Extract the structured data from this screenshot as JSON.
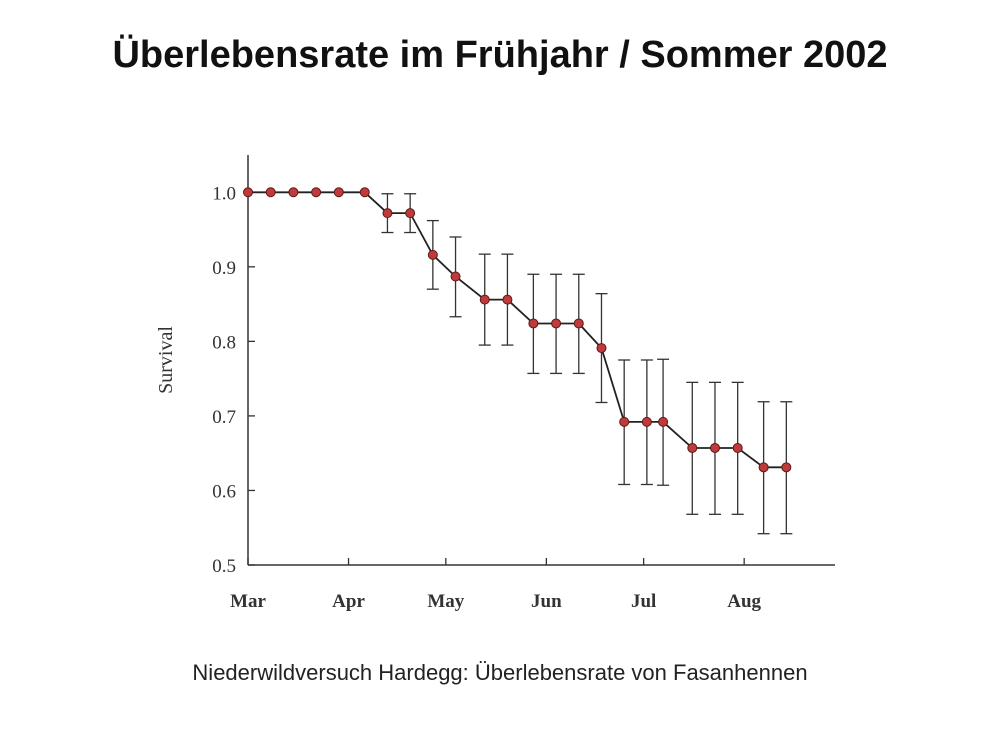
{
  "slide": {
    "title": "Überlebensrate im Frühjahr / Sommer 2002",
    "caption": "Niederwildversuch Hardegg: Überlebensrate von Fasanhennen"
  },
  "chart_data": {
    "type": "line",
    "title": "",
    "xlabel": "",
    "ylabel": "Survival",
    "ylim": [
      0.5,
      1.05
    ],
    "yticks": [
      {
        "value": 0.5,
        "label": "0.5"
      },
      {
        "value": 0.6,
        "label": "0.6"
      },
      {
        "value": 0.7,
        "label": "0.7"
      },
      {
        "value": 0.8,
        "label": "0.8"
      },
      {
        "value": 0.9,
        "label": "0.9"
      },
      {
        "value": 1.0,
        "label": "1.0"
      }
    ],
    "xticks": [
      {
        "value": "2002-03-01",
        "label": "Mar"
      },
      {
        "value": "2002-04-01",
        "label": "Apr"
      },
      {
        "value": "2002-05-01",
        "label": "May"
      },
      {
        "value": "2002-06-01",
        "label": "Jun"
      },
      {
        "value": "2002-07-01",
        "label": "Jul"
      },
      {
        "value": "2002-08-01",
        "label": "Aug"
      }
    ],
    "xlim": [
      "2002-03-01",
      "2002-08-25"
    ],
    "grid": false,
    "marker_color": "#c0393b",
    "line_color": "#222222",
    "series": [
      {
        "points": [
          {
            "x": "2002-03-01",
            "y": 1.0,
            "lo": null,
            "hi": null
          },
          {
            "x": "2002-03-08",
            "y": 1.0,
            "lo": null,
            "hi": null
          },
          {
            "x": "2002-03-15",
            "y": 1.0,
            "lo": null,
            "hi": null
          },
          {
            "x": "2002-03-22",
            "y": 1.0,
            "lo": null,
            "hi": null
          },
          {
            "x": "2002-03-29",
            "y": 1.0,
            "lo": null,
            "hi": null
          },
          {
            "x": "2002-04-06",
            "y": 1.0,
            "lo": null,
            "hi": null
          },
          {
            "x": "2002-04-13",
            "y": 0.972,
            "lo": 0.946,
            "hi": 0.998
          },
          {
            "x": "2002-04-20",
            "y": 0.972,
            "lo": 0.946,
            "hi": 0.998
          },
          {
            "x": "2002-04-27",
            "y": 0.916,
            "lo": 0.87,
            "hi": 0.962
          },
          {
            "x": "2002-05-04",
            "y": 0.887,
            "lo": 0.833,
            "hi": 0.94
          },
          {
            "x": "2002-05-13",
            "y": 0.856,
            "lo": 0.795,
            "hi": 0.917
          },
          {
            "x": "2002-05-20",
            "y": 0.856,
            "lo": 0.795,
            "hi": 0.917
          },
          {
            "x": "2002-05-28",
            "y": 0.824,
            "lo": 0.757,
            "hi": 0.89
          },
          {
            "x": "2002-06-04",
            "y": 0.824,
            "lo": 0.757,
            "hi": 0.89
          },
          {
            "x": "2002-06-11",
            "y": 0.824,
            "lo": 0.757,
            "hi": 0.89
          },
          {
            "x": "2002-06-18",
            "y": 0.791,
            "lo": 0.718,
            "hi": 0.864
          },
          {
            "x": "2002-06-25",
            "y": 0.692,
            "lo": 0.608,
            "hi": 0.775
          },
          {
            "x": "2002-07-02",
            "y": 0.692,
            "lo": 0.608,
            "hi": 0.775
          },
          {
            "x": "2002-07-07",
            "y": 0.692,
            "lo": 0.607,
            "hi": 0.776
          },
          {
            "x": "2002-07-16",
            "y": 0.657,
            "lo": 0.568,
            "hi": 0.745
          },
          {
            "x": "2002-07-23",
            "y": 0.657,
            "lo": 0.568,
            "hi": 0.745
          },
          {
            "x": "2002-07-30",
            "y": 0.657,
            "lo": 0.568,
            "hi": 0.745
          },
          {
            "x": "2002-08-07",
            "y": 0.631,
            "lo": 0.542,
            "hi": 0.719
          },
          {
            "x": "2002-08-14",
            "y": 0.631,
            "lo": 0.542,
            "hi": 0.719
          }
        ]
      }
    ]
  }
}
